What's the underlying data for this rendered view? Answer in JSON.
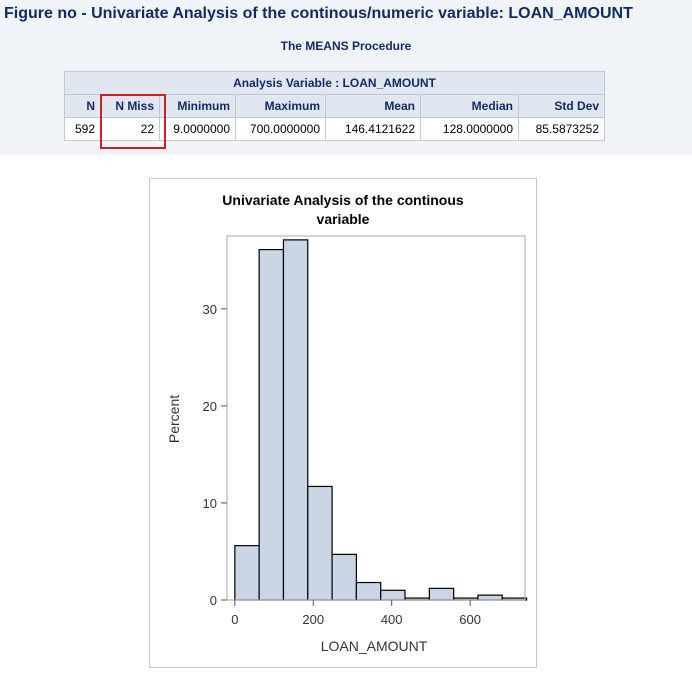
{
  "figure_title": "Figure no - Univariate Analysis of the continous/numeric variable: LOAN_AMOUNT",
  "procedure_title": "The MEANS Procedure",
  "table": {
    "caption": "Analysis Variable : LOAN_AMOUNT",
    "headers": [
      "N",
      "N Miss",
      "Minimum",
      "Maximum",
      "Mean",
      "Median",
      "Std Dev"
    ],
    "row": [
      "592",
      "22",
      "9.0000000",
      "700.0000000",
      "146.4121622",
      "128.0000000",
      "85.5873252"
    ],
    "highlighted_column": "N Miss",
    "highlight_color": "#d11f1f"
  },
  "colors": {
    "title": "#122b67",
    "header_bg": "#e1e7f1",
    "bar_fill": "#cad5e5",
    "bar_stroke": "#000000"
  },
  "chart_data": {
    "type": "bar",
    "title_lines": [
      "Univariate Analysis of the continous",
      "variable"
    ],
    "xlabel": "LOAN_AMOUNT",
    "ylabel": "Percent",
    "xlim": [
      -20,
      740
    ],
    "ylim": [
      0,
      37.5
    ],
    "xticks": [
      0,
      200,
      400,
      600
    ],
    "yticks": [
      0,
      10,
      20,
      30
    ],
    "bin_edges": [
      0,
      62,
      124,
      186,
      248,
      310,
      372,
      434,
      496,
      558,
      620,
      682,
      744
    ],
    "values": [
      5.6,
      36.1,
      37.1,
      11.7,
      4.7,
      1.8,
      1.0,
      0.2,
      1.2,
      0.2,
      0.5,
      0.2
    ],
    "grid": false,
    "legend": "none"
  }
}
